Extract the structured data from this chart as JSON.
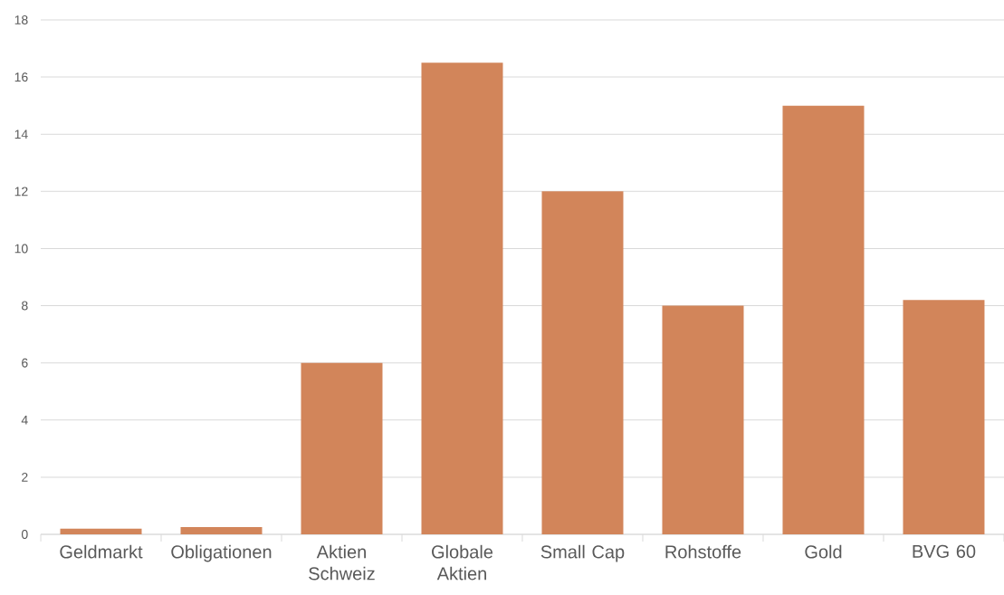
{
  "chart_data": {
    "type": "bar",
    "categories": [
      "Geldmarkt",
      "Obligationen",
      "Aktien Schweiz",
      "Globale Aktien",
      "Small Cap",
      "Rohstoffe",
      "Gold",
      "BVG 60"
    ],
    "values": [
      0.2,
      0.25,
      6,
      16.5,
      12,
      8,
      15,
      8.2
    ],
    "color": "#d2855a",
    "ylim": [
      0,
      18
    ],
    "yticks": [
      0,
      2,
      4,
      6,
      8,
      10,
      12,
      14,
      16,
      18
    ],
    "grid": "y"
  }
}
